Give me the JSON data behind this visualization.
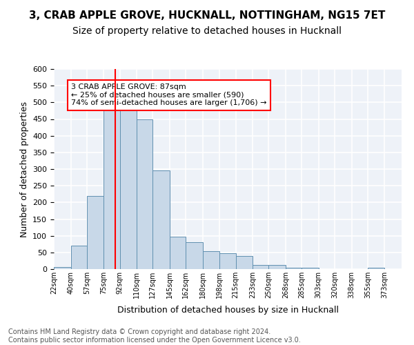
{
  "title_line1": "3, CRAB APPLE GROVE, HUCKNALL, NOTTINGHAM, NG15 7ET",
  "title_line2": "Size of property relative to detached houses in Hucknall",
  "xlabel": "Distribution of detached houses by size in Hucknall",
  "ylabel": "Number of detached properties",
  "footer": "Contains HM Land Registry data © Crown copyright and database right 2024.\nContains public sector information licensed under the Open Government Licence v3.0.",
  "bin_labels": [
    "22sqm",
    "40sqm",
    "57sqm",
    "75sqm",
    "92sqm",
    "110sqm",
    "127sqm",
    "145sqm",
    "162sqm",
    "180sqm",
    "198sqm",
    "215sqm",
    "233sqm",
    "250sqm",
    "268sqm",
    "285sqm",
    "303sqm",
    "320sqm",
    "338sqm",
    "355sqm",
    "373sqm"
  ],
  "bin_edges": [
    22,
    40,
    57,
    75,
    92,
    110,
    127,
    145,
    162,
    180,
    198,
    215,
    233,
    250,
    268,
    285,
    303,
    320,
    338,
    355,
    373,
    391
  ],
  "bar_heights": [
    7,
    70,
    220,
    480,
    480,
    450,
    295,
    98,
    80,
    54,
    47,
    40,
    12,
    12,
    5,
    5,
    0,
    0,
    0,
    5,
    0
  ],
  "bar_color": "#c8d8e8",
  "bar_edgecolor": "#6090b0",
  "vline_x": 87,
  "vline_color": "red",
  "annotation_box_text": "3 CRAB APPLE GROVE: 87sqm\n← 25% of detached houses are smaller (590)\n74% of semi-detached houses are larger (1,706) →",
  "ylim": [
    0,
    600
  ],
  "yticks": [
    0,
    50,
    100,
    150,
    200,
    250,
    300,
    350,
    400,
    450,
    500,
    550,
    600
  ],
  "bg_color": "#eef2f8",
  "grid_color": "white",
  "title1_fontsize": 11,
  "title2_fontsize": 10,
  "xlabel_fontsize": 9,
  "ylabel_fontsize": 9,
  "footer_fontsize": 7
}
